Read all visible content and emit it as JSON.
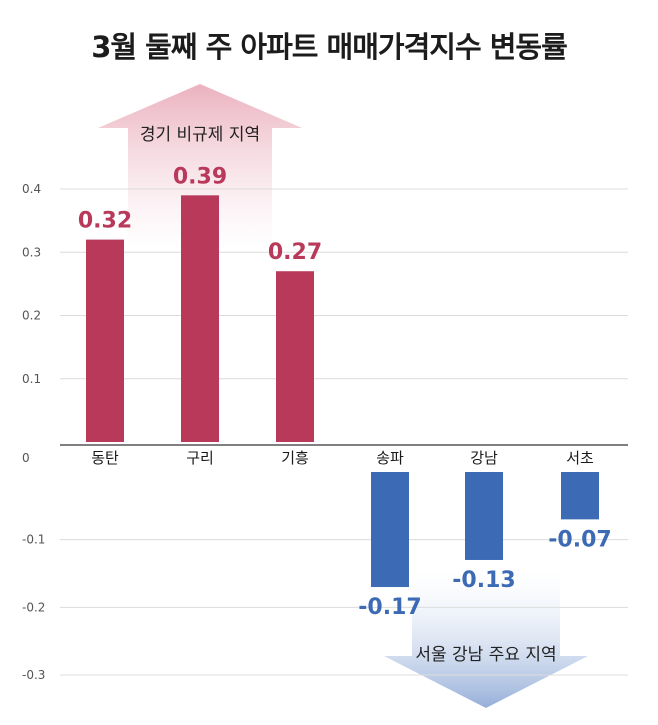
{
  "title": "3월 둘째 주 아파트 매매가격지수 변동률",
  "chart_data": {
    "type": "bar",
    "title": "3월 둘째 주 아파트 매매가격지수 변동률",
    "xlabel": "",
    "ylabel": "",
    "ylim": [
      -0.3,
      0.4
    ],
    "grid": true,
    "categories": [
      "동탄",
      "구리",
      "기흥",
      "송파",
      "강남",
      "서초"
    ],
    "values": [
      0.32,
      0.39,
      0.27,
      -0.17,
      -0.13,
      -0.07
    ],
    "value_labels": [
      "0.32",
      "0.39",
      "0.27",
      "-0.17",
      "-0.13",
      "-0.07"
    ],
    "y_ticks": [
      {
        "value": 0.4,
        "label": "0.4"
      },
      {
        "value": 0.3,
        "label": "0.3"
      },
      {
        "value": 0.2,
        "label": "0.2"
      },
      {
        "value": 0.1,
        "label": "0.1"
      },
      {
        "value": 0,
        "label": "0"
      },
      {
        "value": -0.1,
        "label": "-0.1"
      },
      {
        "value": -0.2,
        "label": "-0.2"
      },
      {
        "value": -0.3,
        "label": "-0.3"
      }
    ],
    "annotations": {
      "up": "경기 비규제 지역",
      "down": "서울 강남 주요 지역"
    }
  },
  "colors": {
    "positive": "#b8395a",
    "negative": "#3c6ab4",
    "grid": "#dcdcdc",
    "axis": "#333333",
    "up_arrow": "#e7a3b3",
    "down_arrow": "#8aa6d4"
  }
}
